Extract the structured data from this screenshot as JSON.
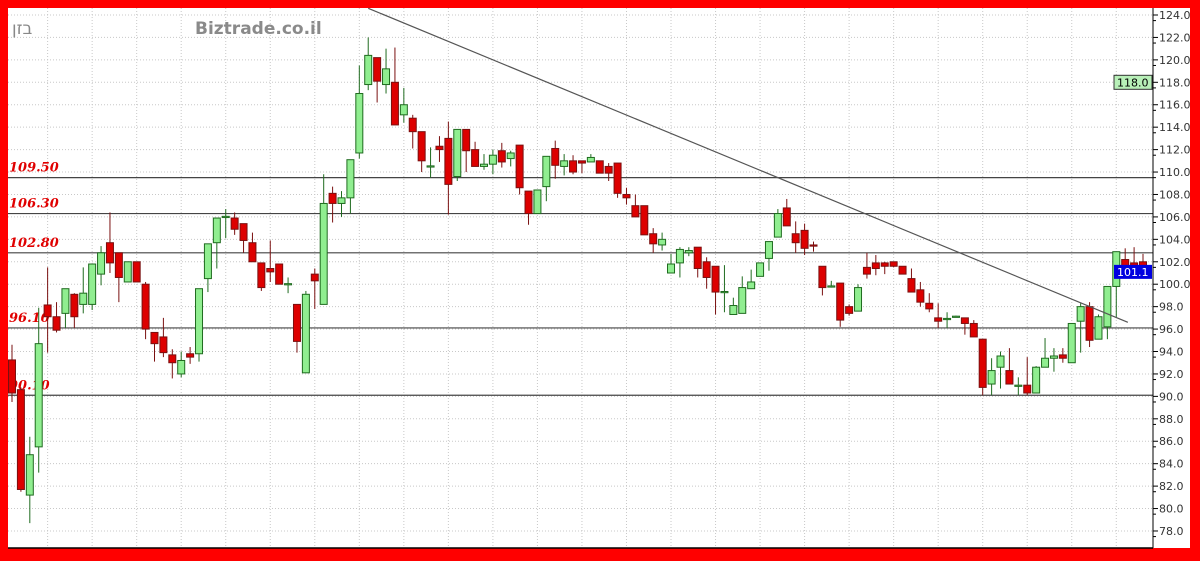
{
  "header": {
    "symbol": "בזן",
    "watermark": "Biztrade.co.il"
  },
  "colors": {
    "frame": "#ff0000",
    "up_body": "#90ee90",
    "up_line": "#1f6b1f",
    "down_body": "#dd0000",
    "down_line": "#7a1010",
    "level_label": "#e00000",
    "last_price_badge": "#0000e0",
    "high_badge": "#b8f0b8"
  },
  "chart_data": {
    "type": "candlestick",
    "title": "",
    "xlabel": "",
    "ylabel": "",
    "ylim": [
      76.9,
      124.6
    ],
    "y_ticks": [
      "124.0",
      "122.0",
      "120.0",
      "118.0",
      "116.0",
      "114.0",
      "112.0",
      "110.0",
      "108.0",
      "106.0",
      "104.0",
      "102.0",
      "100.0",
      "98.0",
      "96.0",
      "94.0",
      "92.0",
      "90.0",
      "88.0",
      "86.0",
      "84.0",
      "82.0",
      "80.0",
      "78.0"
    ],
    "grid": true,
    "y_axis_side": "right",
    "levels": [
      {
        "value": 109.5,
        "label": "109.50"
      },
      {
        "value": 106.3,
        "label": "106.30"
      },
      {
        "value": 102.8,
        "label": "102.80"
      },
      {
        "value": 96.1,
        "label": "96.10"
      },
      {
        "value": 90.1,
        "label": "90.10"
      }
    ],
    "trendline": {
      "from": {
        "bar": 40,
        "price": 124.6
      },
      "to": {
        "bar": 125.3,
        "price": 96.6
      }
    },
    "badges": [
      {
        "label": "118.0",
        "value": 118.0,
        "kind": "high"
      },
      {
        "label": "101.1",
        "value": 101.1,
        "kind": "last"
      }
    ],
    "ohlc": [
      [
        93.25,
        94.6,
        89.5,
        90.3
      ],
      [
        90.6,
        90.8,
        81.5,
        81.7
      ],
      [
        81.2,
        86.4,
        78.7,
        84.8
      ],
      [
        85.5,
        97.9,
        83.2,
        94.7
      ],
      [
        98.15,
        101.5,
        93.9,
        97.1
      ],
      [
        97.1,
        98.4,
        95.7,
        95.9
      ],
      [
        97.4,
        99.6,
        96.1,
        99.6
      ],
      [
        99.1,
        99.2,
        96.1,
        97.1
      ],
      [
        98.2,
        101.5,
        97.4,
        99.2
      ],
      [
        98.2,
        101.8,
        97.7,
        101.8
      ],
      [
        100.9,
        103.4,
        99.9,
        102.8
      ],
      [
        103.7,
        106.4,
        101.0,
        101.9
      ],
      [
        102.8,
        102.8,
        98.4,
        100.6
      ],
      [
        100.2,
        102.0,
        100.2,
        102.0
      ],
      [
        102.0,
        102.0,
        100.2,
        100.2
      ],
      [
        100.0,
        100.2,
        95.1,
        96.0
      ],
      [
        95.7,
        95.7,
        93.1,
        94.7
      ],
      [
        95.3,
        97.0,
        93.5,
        93.9
      ],
      [
        93.7,
        94.2,
        91.6,
        93.0
      ],
      [
        92.0,
        94.0,
        91.7,
        93.2
      ],
      [
        93.8,
        94.4,
        92.9,
        93.5
      ],
      [
        93.8,
        99.6,
        93.1,
        99.6
      ],
      [
        100.5,
        103.6,
        99.3,
        103.6
      ],
      [
        103.7,
        105.9,
        101.4,
        105.9
      ],
      [
        106.0,
        106.7,
        104.1,
        106.05
      ],
      [
        105.9,
        106.4,
        104.4,
        104.9
      ],
      [
        105.4,
        105.4,
        102.8,
        103.9
      ],
      [
        103.7,
        104.6,
        102.0,
        102.0
      ],
      [
        101.9,
        101.9,
        99.4,
        99.7
      ],
      [
        101.4,
        103.9,
        100.2,
        101.1
      ],
      [
        101.8,
        101.8,
        100.0,
        100.0
      ],
      [
        100.0,
        100.6,
        99.2,
        100.05
      ],
      [
        98.2,
        98.2,
        93.9,
        94.9
      ],
      [
        92.1,
        99.4,
        92.1,
        99.1
      ],
      [
        100.9,
        101.4,
        97.8,
        100.3
      ],
      [
        98.2,
        109.8,
        98.2,
        107.2
      ],
      [
        108.1,
        108.7,
        105.5,
        107.2
      ],
      [
        107.2,
        108.3,
        106.0,
        107.7
      ],
      [
        107.7,
        111.1,
        106.3,
        111.1
      ],
      [
        111.7,
        119.5,
        111.2,
        117.0
      ],
      [
        117.8,
        122.0,
        117.3,
        120.4
      ],
      [
        120.2,
        120.2,
        116.2,
        118.1
      ],
      [
        117.8,
        121.0,
        117.0,
        119.2
      ],
      [
        118.0,
        121.1,
        114.2,
        114.2
      ],
      [
        115.1,
        117.5,
        114.4,
        116.0
      ],
      [
        114.8,
        115.1,
        112.1,
        113.6
      ],
      [
        113.6,
        113.6,
        110.0,
        111.0
      ],
      [
        110.5,
        112.2,
        109.5,
        110.55
      ],
      [
        112.3,
        113.2,
        110.9,
        112.0
      ],
      [
        113.0,
        114.5,
        106.2,
        108.9
      ],
      [
        109.6,
        113.8,
        109.2,
        113.8
      ],
      [
        113.8,
        113.8,
        110.0,
        111.9
      ],
      [
        112.0,
        112.7,
        110.5,
        110.5
      ],
      [
        110.5,
        111.6,
        110.2,
        110.7
      ],
      [
        110.7,
        112.0,
        109.8,
        111.5
      ],
      [
        111.9,
        112.6,
        110.4,
        110.9
      ],
      [
        111.2,
        111.9,
        110.5,
        111.7
      ],
      [
        112.4,
        112.4,
        108.0,
        108.6
      ],
      [
        108.3,
        108.3,
        105.3,
        106.3
      ],
      [
        106.3,
        108.4,
        106.3,
        108.4
      ],
      [
        108.7,
        111.4,
        107.4,
        111.4
      ],
      [
        112.1,
        112.8,
        109.4,
        110.6
      ],
      [
        110.5,
        111.6,
        109.7,
        111.0
      ],
      [
        111.0,
        111.5,
        109.8,
        110.0
      ],
      [
        111.0,
        111.0,
        109.9,
        110.8
      ],
      [
        110.9,
        111.6,
        110.9,
        111.3
      ],
      [
        111.0,
        111.0,
        109.9,
        109.9
      ],
      [
        110.5,
        110.8,
        109.2,
        109.9
      ],
      [
        110.8,
        110.8,
        107.7,
        108.1
      ],
      [
        108.0,
        108.6,
        107.1,
        107.7
      ],
      [
        107.0,
        108.0,
        106.0,
        106.0
      ],
      [
        107.0,
        107.0,
        104.4,
        104.4
      ],
      [
        104.5,
        105.0,
        102.8,
        103.6
      ],
      [
        103.5,
        104.6,
        103.0,
        104.0
      ],
      [
        101.0,
        102.7,
        101.0,
        101.8
      ],
      [
        101.9,
        103.3,
        100.6,
        103.1
      ],
      [
        102.8,
        103.3,
        102.5,
        103.0
      ],
      [
        103.3,
        103.3,
        100.6,
        101.4
      ],
      [
        102.0,
        102.4,
        99.6,
        100.6
      ],
      [
        101.6,
        101.6,
        97.3,
        99.3
      ],
      [
        99.3,
        101.7,
        97.5,
        99.35
      ],
      [
        97.3,
        98.8,
        97.3,
        98.1
      ],
      [
        97.4,
        100.7,
        97.4,
        99.7
      ],
      [
        99.6,
        101.3,
        99.6,
        100.2
      ],
      [
        100.7,
        101.9,
        100.7,
        101.9
      ],
      [
        102.3,
        103.8,
        101.2,
        103.8
      ],
      [
        104.2,
        106.7,
        104.2,
        106.3
      ],
      [
        106.8,
        107.6,
        105.2,
        105.2
      ],
      [
        104.5,
        105.6,
        102.8,
        103.7
      ],
      [
        104.8,
        105.4,
        102.6,
        103.2
      ],
      [
        103.5,
        103.8,
        102.9,
        103.45
      ],
      [
        101.6,
        101.6,
        99.0,
        99.7
      ],
      [
        99.8,
        100.3,
        99.7,
        99.85
      ],
      [
        100.1,
        100.1,
        96.2,
        96.8
      ],
      [
        98.0,
        98.2,
        97.2,
        97.4
      ],
      [
        97.6,
        100.0,
        97.6,
        99.7
      ],
      [
        101.5,
        102.8,
        100.5,
        100.9
      ],
      [
        101.9,
        102.6,
        100.8,
        101.4
      ],
      [
        101.9,
        102.0,
        100.9,
        101.6
      ],
      [
        102.0,
        102.0,
        101.5,
        101.6
      ],
      [
        101.6,
        101.6,
        100.9,
        100.9
      ],
      [
        100.5,
        101.4,
        99.3,
        99.3
      ],
      [
        99.5,
        100.2,
        98.0,
        98.4
      ],
      [
        98.3,
        99.2,
        97.5,
        97.8
      ],
      [
        97.0,
        98.3,
        96.1,
        96.7
      ],
      [
        96.9,
        97.5,
        96.1,
        96.95
      ],
      [
        97.1,
        97.2,
        97.1,
        97.15
      ],
      [
        97.0,
        97.0,
        95.5,
        96.5
      ],
      [
        96.5,
        96.8,
        95.3,
        95.3
      ],
      [
        95.1,
        95.1,
        90.1,
        90.8
      ],
      [
        91.1,
        93.4,
        90.1,
        92.3
      ],
      [
        92.6,
        94.0,
        90.7,
        93.6
      ],
      [
        92.3,
        94.3,
        91.1,
        91.1
      ],
      [
        90.9,
        91.7,
        90.1,
        91.0
      ],
      [
        91.0,
        93.5,
        90.1,
        90.3
      ],
      [
        90.3,
        92.7,
        90.3,
        92.6
      ],
      [
        92.6,
        95.2,
        92.6,
        93.4
      ],
      [
        93.4,
        94.3,
        92.2,
        93.6
      ],
      [
        93.7,
        94.3,
        93.0,
        93.4
      ],
      [
        93.0,
        96.5,
        93.0,
        96.5
      ],
      [
        96.7,
        98.3,
        93.9,
        98.0
      ],
      [
        98.0,
        98.4,
        94.4,
        95.0
      ],
      [
        95.1,
        97.3,
        95.1,
        97.1
      ],
      [
        96.2,
        99.8,
        95.1,
        99.8
      ],
      [
        99.8,
        102.9,
        97.0,
        102.9
      ],
      [
        102.2,
        103.2,
        100.8,
        101.5
      ],
      [
        101.9,
        103.3,
        100.8,
        101.5
      ],
      [
        102.0,
        102.7,
        101.1,
        101.1
      ]
    ]
  }
}
